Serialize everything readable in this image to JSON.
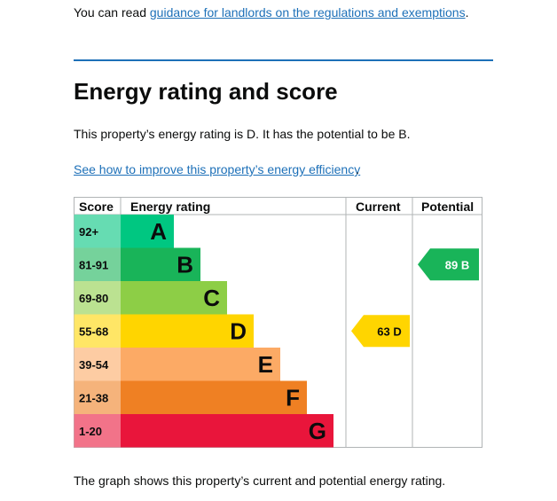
{
  "intro": {
    "prefix": "You can read ",
    "link": "guidance for landlords on the regulations and exemptions",
    "suffix": "."
  },
  "heading": "Energy rating and score",
  "summary": "This property’s energy rating is D. It has the potential to be B.",
  "improve_link": "See how to improve this property’s energy efficiency",
  "improve_suffix": ".",
  "chart_data": {
    "type": "bar",
    "headers": {
      "score": "Score",
      "rating": "Energy rating",
      "current": "Current",
      "potential": "Potential"
    },
    "bands": [
      {
        "range": "92+",
        "letter": "A",
        "color": "#00c781",
        "score_color": "#66dcb2"
      },
      {
        "range": "81-91",
        "letter": "B",
        "color": "#19b459",
        "score_color": "#75d29b"
      },
      {
        "range": "69-80",
        "letter": "C",
        "color": "#8dce46",
        "score_color": "#bbe291"
      },
      {
        "range": "55-68",
        "letter": "D",
        "color": "#ffd500",
        "score_color": "#ffe666"
      },
      {
        "range": "39-54",
        "letter": "E",
        "color": "#fcaa65",
        "score_color": "#fdcca3"
      },
      {
        "range": "21-38",
        "letter": "F",
        "color": "#ef8023",
        "score_color": "#f5b37b"
      },
      {
        "range": "1-20",
        "letter": "G",
        "color": "#e9153b",
        "score_color": "#f27389"
      }
    ],
    "current": {
      "score": 63,
      "band": "D",
      "label": "63 D",
      "color": "#ffd500"
    },
    "potential": {
      "score": 89,
      "band": "B",
      "label": "89 B",
      "color": "#19b459"
    }
  },
  "caption": "The graph shows this property’s current and potential energy rating."
}
